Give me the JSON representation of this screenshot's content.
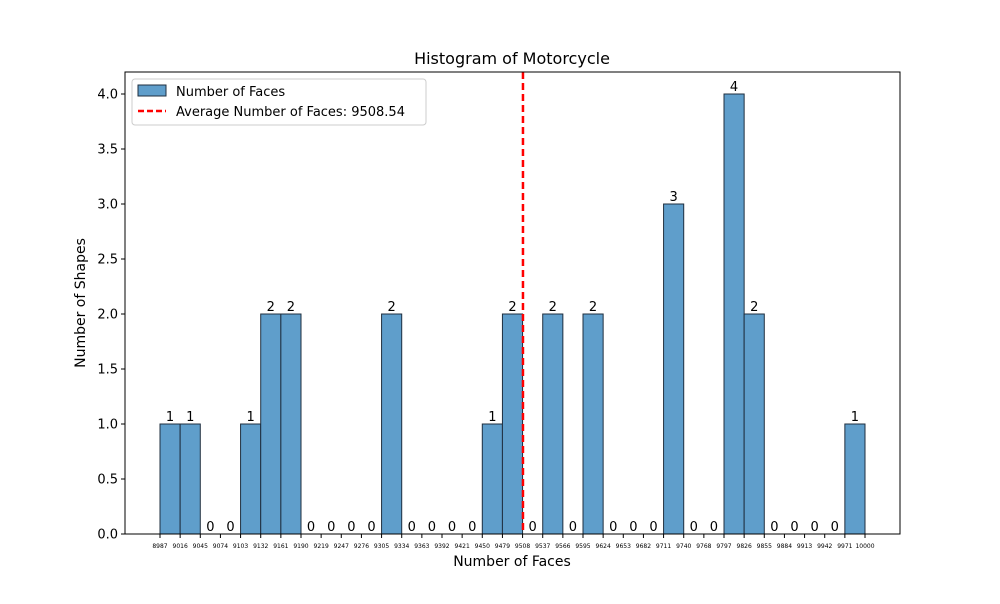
{
  "chart_data": {
    "type": "bar",
    "title": "Histogram of Motorcycle",
    "xlabel": "Number of Faces",
    "ylabel": "Number of Shapes",
    "ylim": [
      0,
      4.2
    ],
    "yticks": [
      "0.0",
      "0.5",
      "1.0",
      "1.5",
      "2.0",
      "2.5",
      "3.0",
      "3.5",
      "4.0"
    ],
    "xtick_labels": [
      "8987",
      "9016",
      "9045",
      "9074",
      "9103",
      "9132",
      "9161",
      "9190",
      "9219",
      "9247",
      "9276",
      "9305",
      "9334",
      "9363",
      "9392",
      "9421",
      "9450",
      "9479",
      "9508",
      "9537",
      "9566",
      "9595",
      "9624",
      "9653",
      "9682",
      "9711",
      "9740",
      "9768",
      "9797",
      "9826",
      "9855",
      "9884",
      "9913",
      "9942",
      "9971",
      "10000"
    ],
    "values": [
      1,
      1,
      0,
      0,
      1,
      2,
      2,
      0,
      0,
      0,
      0,
      2,
      0,
      0,
      0,
      0,
      1,
      2,
      0,
      2,
      0,
      2,
      0,
      0,
      0,
      3,
      0,
      0,
      4,
      2,
      0,
      0,
      0,
      0,
      1
    ],
    "value_labels": [
      "1",
      "1",
      "0",
      "0",
      "1",
      "2",
      "2",
      "0",
      "0",
      "0",
      "0",
      "2",
      "0",
      "0",
      "0",
      "0",
      "1",
      "2",
      "0",
      "2",
      "0",
      "2",
      "0",
      "0",
      "0",
      "3",
      "0",
      "0",
      "4",
      "2",
      "0",
      "0",
      "0",
      "0",
      "1"
    ],
    "average": 9508.54,
    "series": [
      {
        "name": "Number of Faces",
        "color": "#5f9ecb",
        "edge_color": "#1f2f3f"
      },
      {
        "name": "Average Number of Faces: 9508.54",
        "color": "#ff0000",
        "style": "dashed"
      }
    ],
    "legend_position": "top-left",
    "grid": false
  }
}
